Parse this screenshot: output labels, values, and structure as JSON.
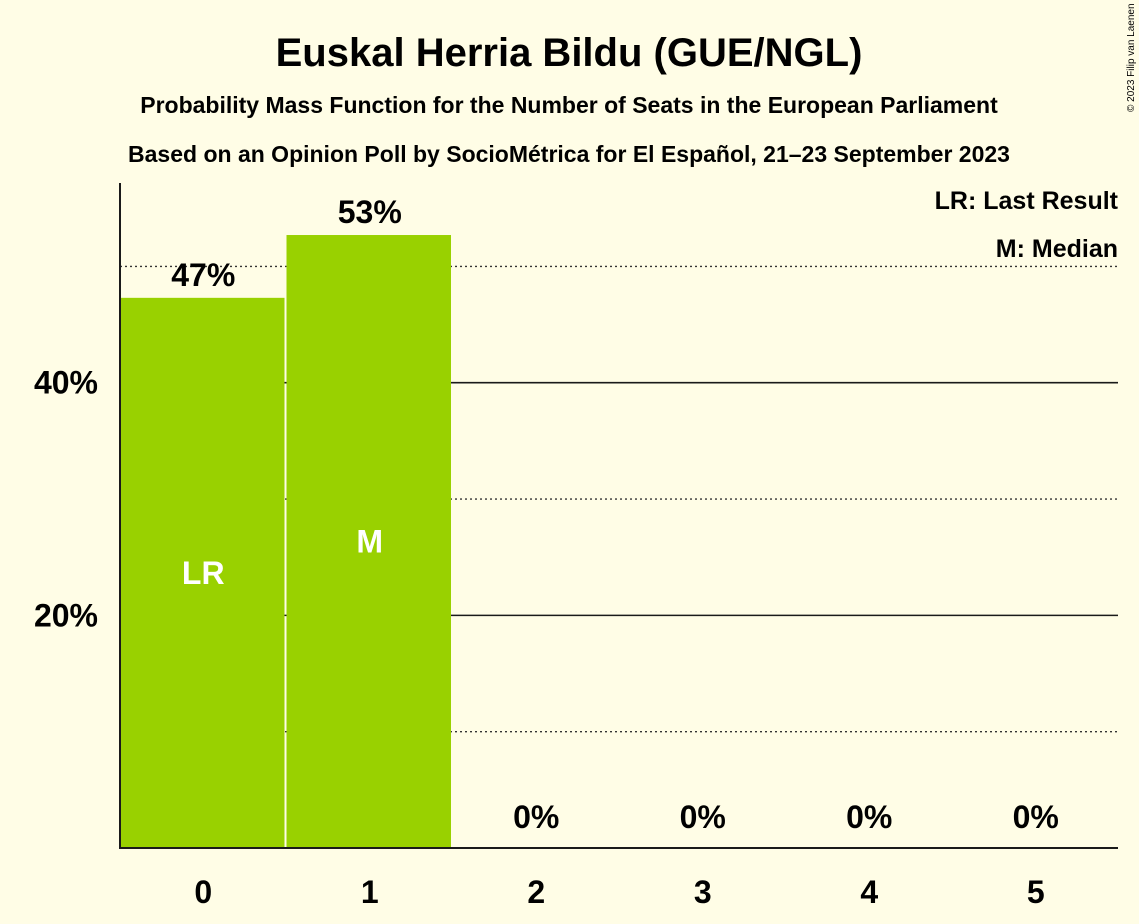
{
  "chart_data": {
    "type": "bar",
    "title": "Euskal Herria Bildu (GUE/NGL)",
    "subtitle": "Probability Mass Function for the Number of Seats in the European Parliament",
    "subtitle2": "Based on an Opinion Poll by SocioMétrica for El Español, 21–23 September 2023",
    "copyright": "© 2023 Filip van Laenen",
    "categories": [
      "0",
      "1",
      "2",
      "3",
      "4",
      "5"
    ],
    "values": [
      47.3,
      52.7,
      0,
      0,
      0,
      0
    ],
    "value_labels": [
      "47%",
      "53%",
      "0%",
      "0%",
      "0%",
      "0%"
    ],
    "bar_markers": [
      "LR",
      "M",
      "",
      "",
      "",
      ""
    ],
    "y_ticks": [
      20,
      40
    ],
    "y_tick_labels": [
      "20%",
      "40%"
    ],
    "minor_gridlines": [
      10,
      30,
      50
    ],
    "ylim": [
      0,
      57
    ],
    "legend": [
      "LR: Last Result",
      "M: Median"
    ],
    "legend_position": "top-right",
    "colors": {
      "bar": "#99D100",
      "background": "#FFFDE6",
      "text": "#1a1a1a",
      "bar_marker_text": "#ffffff"
    }
  }
}
